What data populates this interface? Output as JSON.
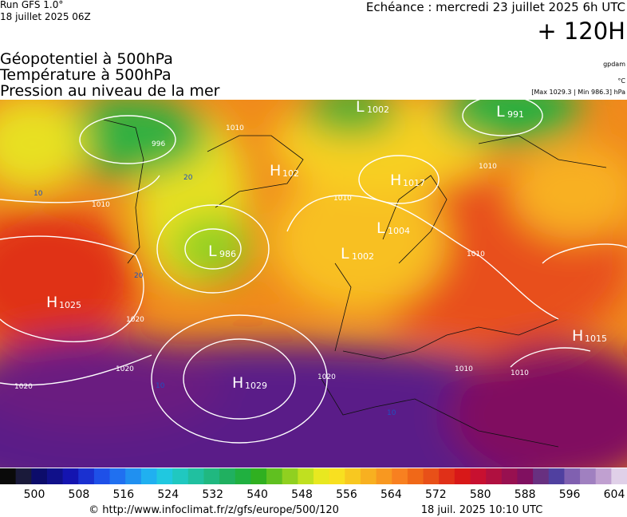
{
  "header": {
    "run": "Run GFS 1.0°",
    "run_date": "18 juillet 2025 06Z",
    "forecast": "Echéance : mercredi 23 juillet 2025 6h UTC",
    "lead": "+ 120H",
    "fields": [
      "Géopotentiel à 500hPa",
      "Température à 500hPa",
      "Pression au niveau de la mer"
    ],
    "units": [
      "gpdam",
      "°C",
      "[Max 1029.3 | Min 986.3] hPa"
    ]
  },
  "map": {
    "centers": [
      {
        "letter": "L",
        "value": "1002"
      },
      {
        "letter": "L",
        "value": "991"
      },
      {
        "letter": "H",
        "value": "1017"
      },
      {
        "letter": "L",
        "value": "1004"
      },
      {
        "letter": "L",
        "value": "1002"
      },
      {
        "letter": "L",
        "value": "986"
      },
      {
        "letter": "H",
        "value": "1025"
      },
      {
        "letter": "H",
        "value": "1029"
      },
      {
        "letter": "H",
        "value": "1015"
      },
      {
        "letter": "H",
        "value": "102"
      }
    ],
    "isobar_labels": [
      "996",
      "1010",
      "1010",
      "1010",
      "1010",
      "1010",
      "1020",
      "1020",
      "1020",
      "1020",
      "1010",
      "1010"
    ],
    "temperature_labels": [
      "10",
      "20",
      "10",
      "10",
      "20"
    ]
  },
  "colorbar": {
    "ticks": [
      500,
      508,
      516,
      524,
      532,
      540,
      548,
      556,
      564,
      572,
      580,
      588,
      596,
      604
    ],
    "colors": [
      "#0a0a0a",
      "#1a1a3a",
      "#0c0c6a",
      "#10108a",
      "#1414b0",
      "#1a30d0",
      "#1e50e8",
      "#2070f0",
      "#2090f0",
      "#20b0f0",
      "#20c8e0",
      "#20c8c0",
      "#20c0a0",
      "#20b880",
      "#20b060",
      "#20b040",
      "#30b020",
      "#60c020",
      "#90d020",
      "#c0e020",
      "#e8e820",
      "#f8e020",
      "#f8c820",
      "#f8b020",
      "#f89820",
      "#f88020",
      "#f06818",
      "#e85018",
      "#e03018",
      "#d81818",
      "#c81030",
      "#b01040",
      "#981050",
      "#801060",
      "#683080",
      "#5040a0",
      "#8060b0",
      "#a080c0",
      "#c0a0d0",
      "#e0d0e8"
    ]
  },
  "footer": {
    "source": "© http://www.infoclimat.fr/z/gfs/europe/500/120",
    "generated": "18 juil. 2025 10:10 UTC"
  }
}
